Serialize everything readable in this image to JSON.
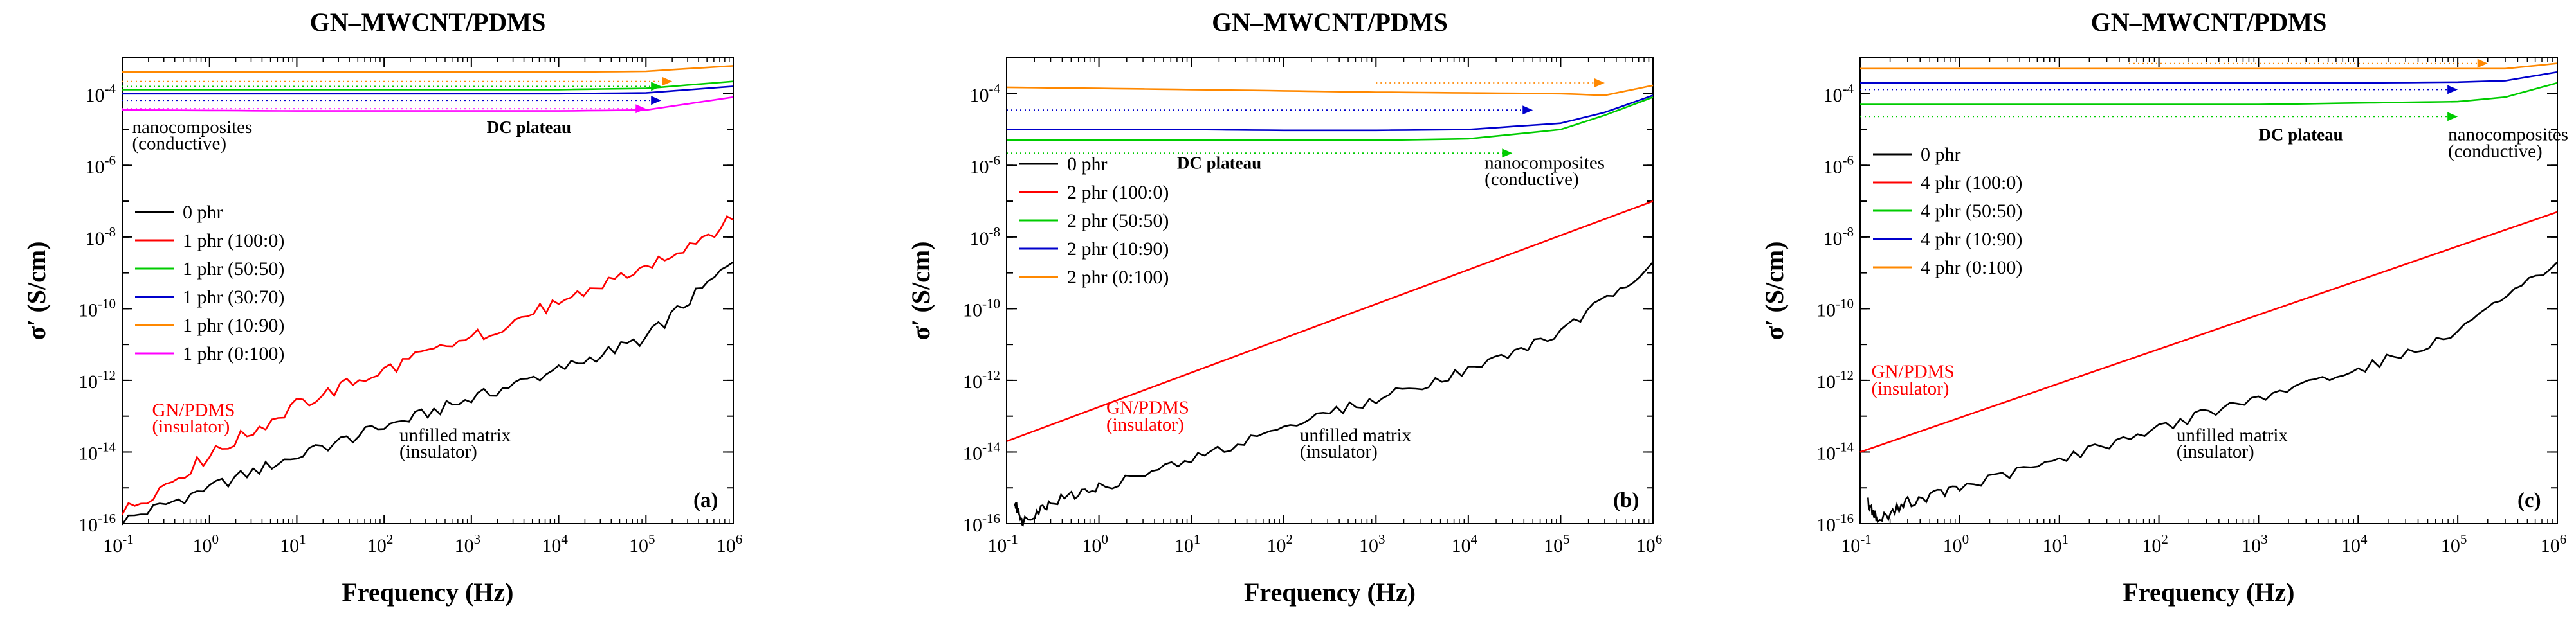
{
  "chart_data": [
    {
      "type": "line",
      "title": "GN–MWCNT/PDMS",
      "xlabel": "Frequency (Hz)",
      "ylabel": "σ′ (S/cm)",
      "xscale": "log",
      "yscale": "log",
      "xlim": [
        0.1,
        1000000
      ],
      "ylim": [
        1e-16,
        0.001
      ],
      "xticks": [
        0.1,
        1,
        10,
        100,
        1000,
        10000,
        100000,
        1000000
      ],
      "yticks": [
        1e-16,
        1e-14,
        1e-12,
        1e-10,
        1e-08,
        1e-06,
        0.0001
      ],
      "xtick_labels": [
        {
          "base": "10",
          "exp": "-1"
        },
        {
          "base": "10",
          "exp": "0"
        },
        {
          "base": "10",
          "exp": "1"
        },
        {
          "base": "10",
          "exp": "2"
        },
        {
          "base": "10",
          "exp": "3"
        },
        {
          "base": "10",
          "exp": "4"
        },
        {
          "base": "10",
          "exp": "5"
        },
        {
          "base": "10",
          "exp": "6"
        }
      ],
      "ytick_labels": [
        {
          "base": "10",
          "exp": "-16"
        },
        {
          "base": "10",
          "exp": "-14"
        },
        {
          "base": "10",
          "exp": "-12"
        },
        {
          "base": "10",
          "exp": "-10"
        },
        {
          "base": "10",
          "exp": "-8"
        },
        {
          "base": "10",
          "exp": "-6"
        },
        {
          "base": "10",
          "exp": "-4"
        }
      ],
      "panel_label": "(a)",
      "legend_position": "middle-left",
      "series": [
        {
          "name": "0 phr",
          "color": "#000000",
          "x": [
            0.1,
            1,
            10,
            100,
            1000,
            10000,
            100000,
            1000000
          ],
          "y": [
            1.2e-16,
            1e-15,
            8e-15,
            5e-14,
            3e-13,
            2e-12,
            1.5e-11,
            2e-09
          ],
          "jitter": 0.35
        },
        {
          "name": "1 phr (100:0)",
          "color": "#ff0000",
          "x": [
            0.1,
            1,
            10,
            100,
            1000,
            10000,
            100000,
            1000000
          ],
          "y": [
            2e-16,
            8e-15,
            2e-13,
            2e-12,
            1.5e-11,
            1.5e-10,
            1.5e-09,
            3e-08
          ],
          "jitter": 0.4
        },
        {
          "name": "1 phr (50:50)",
          "color": "#00cc00",
          "x": [
            0.1,
            1,
            10,
            100,
            1000,
            10000,
            100000,
            1000000
          ],
          "y": [
            0.00013,
            0.00013,
            0.00013,
            0.00013,
            0.00013,
            0.00013,
            0.00014,
            0.00022
          ],
          "jitter": 0
        },
        {
          "name": "1 phr (30:70)",
          "color": "#0000cc",
          "x": [
            0.1,
            1,
            10,
            100,
            1000,
            10000,
            100000,
            1000000
          ],
          "y": [
            0.0001,
            0.0001,
            0.0001,
            0.0001,
            0.0001,
            0.0001,
            0.000105,
            0.00016
          ],
          "jitter": 0
        },
        {
          "name": "1 phr (10:90)",
          "color": "#ff8800",
          "x": [
            0.1,
            1,
            10,
            100,
            1000,
            10000,
            100000,
            1000000
          ],
          "y": [
            0.0004,
            0.0004,
            0.0004,
            0.0004,
            0.0004,
            0.0004,
            0.00042,
            0.0006
          ],
          "jitter": 0
        },
        {
          "name": "1 phr (0:100)",
          "color": "#ff00ff",
          "x": [
            0.1,
            1,
            10,
            100,
            1000,
            10000,
            100000,
            1000000
          ],
          "y": [
            3.5e-05,
            3.4e-05,
            3.3e-05,
            3.3e-05,
            3.3e-05,
            3.3e-05,
            3.5e-05,
            8e-05
          ],
          "jitter": 0
        }
      ],
      "arrows": [
        {
          "color": "#ff8800",
          "x0": 0.1,
          "x1": 200000,
          "y": 0.00022
        },
        {
          "color": "#00cc00",
          "x0": 0.1,
          "x1": 150000,
          "y": 0.00016
        },
        {
          "color": "#0000cc",
          "x0": 0.1,
          "x1": 150000,
          "y": 6.5e-05
        },
        {
          "color": "#ff00ff",
          "x0": 0.1,
          "x1": 100000,
          "y": 3.8e-05
        }
      ],
      "annotations": [
        {
          "text": "nanocomposites",
          "color": "#000000",
          "bold": false,
          "x": 0.13,
          "y": 8e-06
        },
        {
          "text": "(conductive)",
          "color": "#000000",
          "bold": false,
          "x": 0.13,
          "y": 2.8e-06
        },
        {
          "text": "DC plateau",
          "color": "#000000",
          "bold": true,
          "x": 1500,
          "y": 8e-06
        },
        {
          "text": "GN/PDMS",
          "color": "#ff0000",
          "bold": false,
          "x": 0.22,
          "y": 1e-13
        },
        {
          "text": "(insulator)",
          "color": "#ff0000",
          "bold": false,
          "x": 0.22,
          "y": 3.5e-14
        },
        {
          "text": "unfilled matrix",
          "color": "#000000",
          "bold": false,
          "x": 150,
          "y": 2e-14
        },
        {
          "text": "(insulator)",
          "color": "#000000",
          "bold": false,
          "x": 150,
          "y": 7e-15
        }
      ]
    },
    {
      "type": "line",
      "title": "GN–MWCNT/PDMS",
      "xlabel": "Frequency (Hz)",
      "ylabel": "σ′ (S/cm)",
      "xscale": "log",
      "yscale": "log",
      "xlim": [
        0.1,
        1000000
      ],
      "ylim": [
        1e-16,
        0.001
      ],
      "xticks": [
        0.1,
        1,
        10,
        100,
        1000,
        10000,
        100000,
        1000000
      ],
      "yticks": [
        1e-16,
        1e-14,
        1e-12,
        1e-10,
        1e-08,
        1e-06,
        0.0001
      ],
      "xtick_labels": [
        {
          "base": "10",
          "exp": "-1"
        },
        {
          "base": "10",
          "exp": "0"
        },
        {
          "base": "10",
          "exp": "1"
        },
        {
          "base": "10",
          "exp": "2"
        },
        {
          "base": "10",
          "exp": "3"
        },
        {
          "base": "10",
          "exp": "4"
        },
        {
          "base": "10",
          "exp": "5"
        },
        {
          "base": "10",
          "exp": "6"
        }
      ],
      "ytick_labels": [
        {
          "base": "10",
          "exp": "-16"
        },
        {
          "base": "10",
          "exp": "-14"
        },
        {
          "base": "10",
          "exp": "-12"
        },
        {
          "base": "10",
          "exp": "-10"
        },
        {
          "base": "10",
          "exp": "-8"
        },
        {
          "base": "10",
          "exp": "-6"
        },
        {
          "base": "10",
          "exp": "-4"
        }
      ],
      "panel_label": "(b)",
      "legend_position": "middle-left",
      "series": [
        {
          "name": "0 phr",
          "color": "#000000",
          "x": [
            0.12,
            0.15,
            0.3,
            1,
            10,
            100,
            1000,
            10000,
            100000,
            1000000
          ],
          "y": [
            4e-16,
            1.2e-16,
            4e-16,
            1e-15,
            6e-15,
            5e-14,
            3e-13,
            2e-12,
            2e-11,
            2e-09
          ],
          "jitter": 0.3
        },
        {
          "name": "2 phr (100:0)",
          "color": "#ff0000",
          "x": [
            0.1,
            1000000
          ],
          "y": [
            2e-14,
            1e-07
          ],
          "jitter": 0
        },
        {
          "name": "2 phr (50:50)",
          "color": "#00cc00",
          "x": [
            0.1,
            1,
            10,
            100,
            1000,
            10000,
            100000,
            300000,
            1000000
          ],
          "y": [
            5e-06,
            5e-06,
            5e-06,
            5e-06,
            5e-06,
            5.5e-06,
            1e-05,
            2.5e-05,
            8e-05
          ],
          "jitter": 0
        },
        {
          "name": "2 phr (10:90)",
          "color": "#0000cc",
          "x": [
            0.1,
            1,
            10,
            100,
            1000,
            10000,
            100000,
            300000,
            1000000
          ],
          "y": [
            1e-05,
            1e-05,
            1e-05,
            9.5e-06,
            9.5e-06,
            1e-05,
            1.5e-05,
            3e-05,
            9e-05
          ],
          "jitter": 0
        },
        {
          "name": "2 phr (0:100)",
          "color": "#ff8800",
          "x": [
            0.1,
            1,
            10,
            100,
            1000,
            10000,
            100000,
            300000,
            1000000
          ],
          "y": [
            0.00015,
            0.00014,
            0.00013,
            0.00012,
            0.00011,
            0.000105,
            0.0001,
            9e-05,
            0.00017
          ],
          "jitter": 0
        }
      ],
      "arrows": [
        {
          "color": "#ff8800",
          "x0": 1000,
          "x1": 300000,
          "y": 0.0002
        },
        {
          "color": "#0000cc",
          "x0": 0.1,
          "x1": 50000,
          "y": 3.5e-05
        },
        {
          "color": "#00cc00",
          "x0": 0.1,
          "x1": 30000,
          "y": 2.2e-06
        }
      ],
      "annotations": [
        {
          "text": "DC plateau",
          "color": "#000000",
          "bold": true,
          "x": 7,
          "y": 8e-07
        },
        {
          "text": "nanocomposites",
          "color": "#000000",
          "bold": false,
          "x": 15000,
          "y": 8e-07
        },
        {
          "text": "(conductive)",
          "color": "#000000",
          "bold": false,
          "x": 15000,
          "y": 2.8e-07
        },
        {
          "text": "GN/PDMS",
          "color": "#ff0000",
          "bold": false,
          "x": 1.2,
          "y": 1.2e-13
        },
        {
          "text": "(insulator)",
          "color": "#ff0000",
          "bold": false,
          "x": 1.2,
          "y": 4e-14
        },
        {
          "text": "unfilled matrix",
          "color": "#000000",
          "bold": false,
          "x": 150,
          "y": 2e-14
        },
        {
          "text": "(insulator)",
          "color": "#000000",
          "bold": false,
          "x": 150,
          "y": 7e-15
        }
      ]
    },
    {
      "type": "line",
      "title": "GN–MWCNT/PDMS",
      "xlabel": "Frequency (Hz)",
      "ylabel": "σ′ (S/cm)",
      "xscale": "log",
      "yscale": "log",
      "xlim": [
        0.1,
        1000000
      ],
      "ylim": [
        1e-16,
        0.001
      ],
      "xticks": [
        0.1,
        1,
        10,
        100,
        1000,
        10000,
        100000,
        1000000
      ],
      "yticks": [
        1e-16,
        1e-14,
        1e-12,
        1e-10,
        1e-08,
        1e-06,
        0.0001
      ],
      "xtick_labels": [
        {
          "base": "10",
          "exp": "-1"
        },
        {
          "base": "10",
          "exp": "0"
        },
        {
          "base": "10",
          "exp": "1"
        },
        {
          "base": "10",
          "exp": "2"
        },
        {
          "base": "10",
          "exp": "3"
        },
        {
          "base": "10",
          "exp": "4"
        },
        {
          "base": "10",
          "exp": "5"
        },
        {
          "base": "10",
          "exp": "6"
        }
      ],
      "ytick_labels": [
        {
          "base": "10",
          "exp": "-16"
        },
        {
          "base": "10",
          "exp": "-14"
        },
        {
          "base": "10",
          "exp": "-12"
        },
        {
          "base": "10",
          "exp": "-10"
        },
        {
          "base": "10",
          "exp": "-8"
        },
        {
          "base": "10",
          "exp": "-6"
        },
        {
          "base": "10",
          "exp": "-4"
        }
      ],
      "panel_label": "(c)",
      "legend_position": "middle-left",
      "series": [
        {
          "name": "0 phr",
          "color": "#000000",
          "x": [
            0.12,
            0.15,
            0.3,
            1,
            10,
            100,
            1000,
            10000,
            100000,
            1000000
          ],
          "y": [
            4e-16,
            1.2e-16,
            4e-16,
            1e-15,
            6e-15,
            5e-14,
            3e-13,
            2e-12,
            2e-11,
            2e-09
          ],
          "jitter": 0.3
        },
        {
          "name": "4 phr (100:0)",
          "color": "#ff0000",
          "x": [
            0.1,
            1000000
          ],
          "y": [
            1e-14,
            5e-08
          ],
          "jitter": 0
        },
        {
          "name": "4 phr (50:50)",
          "color": "#00cc00",
          "x": [
            0.1,
            1,
            10,
            100,
            1000,
            10000,
            100000,
            300000,
            1000000
          ],
          "y": [
            5e-05,
            5e-05,
            5e-05,
            5e-05,
            5e-05,
            5.5e-05,
            6e-05,
            8e-05,
            0.0002
          ],
          "jitter": 0
        },
        {
          "name": "4 phr (10:90)",
          "color": "#0000cc",
          "x": [
            0.1,
            1,
            10,
            100,
            1000,
            10000,
            100000,
            300000,
            1000000
          ],
          "y": [
            0.0002,
            0.0002,
            0.0002,
            0.0002,
            0.0002,
            0.0002,
            0.00021,
            0.00023,
            0.0004
          ],
          "jitter": 0
        },
        {
          "name": "4 phr (0:100)",
          "color": "#ff8800",
          "x": [
            0.1,
            1,
            10,
            100,
            1000,
            10000,
            100000,
            300000,
            1000000
          ],
          "y": [
            0.0005,
            0.0005,
            0.0005,
            0.0005,
            0.0005,
            0.0005,
            0.0005,
            0.0005,
            0.0007
          ],
          "jitter": 0
        }
      ],
      "arrows": [
        {
          "color": "#ff8800",
          "x0": 50,
          "x1": 200000,
          "y": 0.0007
        },
        {
          "color": "#0000cc",
          "x0": 0.1,
          "x1": 100000,
          "y": 0.00013
        },
        {
          "color": "#00cc00",
          "x0": 0.1,
          "x1": 100000,
          "y": 2.3e-05
        }
      ],
      "annotations": [
        {
          "text": "DC plateau",
          "color": "#000000",
          "bold": true,
          "x": 1000,
          "y": 5e-06
        },
        {
          "text": "nanocomposites",
          "color": "#000000",
          "bold": false,
          "x": 80000,
          "y": 5e-06
        },
        {
          "text": "(conductive)",
          "color": "#000000",
          "bold": false,
          "x": 80000,
          "y": 1.7e-06
        },
        {
          "text": "GN/PDMS",
          "color": "#ff0000",
          "bold": false,
          "x": 0.13,
          "y": 1.2e-12
        },
        {
          "text": "(insulator)",
          "color": "#ff0000",
          "bold": false,
          "x": 0.13,
          "y": 4e-13
        },
        {
          "text": "unfilled matrix",
          "color": "#000000",
          "bold": false,
          "x": 150,
          "y": 2e-14
        },
        {
          "text": "(insulator)",
          "color": "#000000",
          "bold": false,
          "x": 150,
          "y": 7e-15
        }
      ]
    }
  ]
}
